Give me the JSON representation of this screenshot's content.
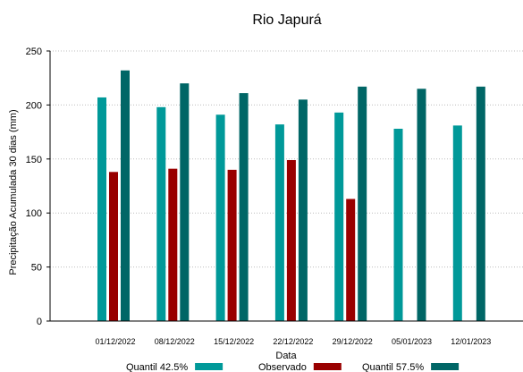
{
  "chart_data": {
    "type": "bar",
    "title": "Rio Japurá",
    "xlabel": "Data",
    "ylabel": "Precipitação Acumulada 30 dias (mm)",
    "ylim": [
      0,
      250
    ],
    "yticks": [
      0,
      50,
      100,
      150,
      200,
      250
    ],
    "grid": true,
    "legend_position": "bottom",
    "categories": [
      "01/12/2022",
      "08/12/2022",
      "15/12/2022",
      "22/12/2022",
      "29/12/2022",
      "05/01/2023",
      "12/01/2023"
    ],
    "series": [
      {
        "name": "Quantil 42.5%",
        "color": "#009999",
        "values": [
          207,
          198,
          191,
          182,
          193,
          178,
          181
        ]
      },
      {
        "name": "Observado",
        "color": "#990000",
        "values": [
          138,
          141,
          140,
          149,
          113,
          null,
          null
        ]
      },
      {
        "name": "Quantil 57.5%",
        "color": "#006666",
        "values": [
          232,
          220,
          211,
          205,
          217,
          215,
          217
        ]
      }
    ]
  }
}
